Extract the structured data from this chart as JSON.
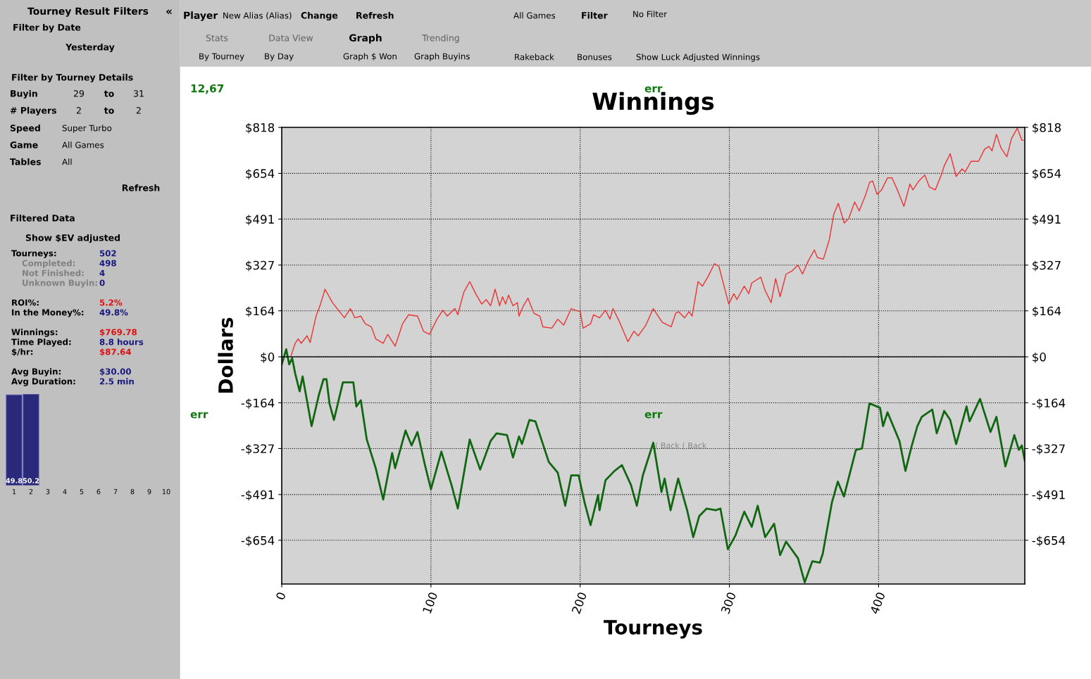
{
  "chart_data": [
    {
      "type": "other",
      "annotations": [
        "Tourney Result Filters",
        "«",
        "Filter by Date",
        "Yesterday",
        "Filter by Tourney Details",
        "Buyin",
        "29",
        "to",
        "31",
        "# Players",
        "2",
        "to",
        "2",
        "Speed",
        "Super Turbo",
        "Game",
        "All Games",
        "Tables",
        "All",
        "Refresh",
        "Filtered Data",
        "Show $EV adjusted",
        "Tourneys:",
        "502",
        "Completed:",
        "498",
        "Not Finished:",
        "4",
        "Unknown Buyin:",
        "0",
        "ROI%:",
        "5.2%",
        "In the Money%:",
        "49.8%",
        "Winnings:",
        "$769.78",
        "Time Played:",
        "8.8 hours",
        "$/hr:",
        "$87.64",
        "Avg Buyin:",
        "$30.00",
        "Avg Duration:",
        "2.5 min",
        "Player",
        "New Alias (Alias)",
        "Change",
        "Refresh",
        "All Games",
        "Filter",
        "No Filter",
        "Stats",
        "Data View",
        "Graph",
        "Trending",
        "By Tourney",
        "By Day",
        "Graph $ Won",
        "Graph Buyins",
        "Rakeback",
        "Bonuses",
        "Show Luck Adjusted Winnings"
      ]
    },
    {
      "type": "bar",
      "categories": [
        "1",
        "2",
        "3",
        "4",
        "5",
        "6",
        "7",
        "8",
        "9",
        "10"
      ],
      "values": [
        49.8,
        50.2,
        null,
        null,
        null,
        null,
        null,
        null,
        null,
        null
      ],
      "color": "#2b2a7a",
      "data_labels": true,
      "tick_labels": "x"
    },
    {
      "type": "line",
      "title": "Winnings",
      "xlabel": "Tourneys",
      "ylabel": "Dollars",
      "grid": true,
      "marker": "none",
      "line_style": "solid",
      "xlim": [
        0,
        498
      ],
      "xticks": [
        0,
        100,
        200,
        300,
        400
      ],
      "ylim": [
        -810,
        818
      ],
      "yticks": [
        {
          "value": 818,
          "label": "$818"
        },
        {
          "value": 654,
          "label": "$654"
        },
        {
          "value": 491,
          "label": "$491"
        },
        {
          "value": 327,
          "label": "$327"
        },
        {
          "value": 164,
          "label": "$164"
        },
        {
          "value": 0,
          "label": "$0"
        },
        {
          "value": -164,
          "label": "-$164"
        },
        {
          "value": -327,
          "label": "-$327"
        },
        {
          "value": -491,
          "label": "-$491"
        },
        {
          "value": -654,
          "label": "-$654"
        }
      ],
      "y2lim": [
        -810,
        818
      ],
      "y2ticks": [
        {
          "value": 818,
          "label": "$818"
        },
        {
          "value": 654,
          "label": "$654"
        },
        {
          "value": 491,
          "label": "$491"
        },
        {
          "value": 327,
          "label": "$327"
        },
        {
          "value": 164,
          "label": "$164"
        },
        {
          "value": 0,
          "label": "$0"
        },
        {
          "value": -164,
          "label": "-$164"
        },
        {
          "value": -327,
          "label": "-$327"
        },
        {
          "value": -491,
          "label": "-$491"
        },
        {
          "value": -654,
          "label": "-$654"
        }
      ],
      "ref_lines": [
        {
          "axis": "y",
          "value": 0,
          "color": "#000000",
          "line_style": "solid"
        }
      ],
      "annotations": [
        "12,67",
        "err",
        "err",
        "err",
        "( Back ( Back"
      ],
      "series": [
        {
          "color": "#ee3333",
          "x": [
            6,
            9,
            11,
            13,
            17,
            19,
            23,
            26,
            29,
            34,
            38,
            42,
            46,
            49,
            53,
            56,
            60,
            63,
            68,
            71,
            76,
            81,
            85,
            91,
            95,
            99,
            104,
            108,
            111,
            116,
            118,
            122,
            126,
            130,
            134,
            137,
            140,
            143,
            146,
            148,
            150,
            152,
            155,
            158,
            159,
            162,
            165,
            169,
            173,
            175,
            181,
            185,
            189,
            194,
            197,
            200,
            202,
            207,
            209,
            213,
            217,
            220,
            222,
            226,
            232,
            236,
            239,
            244,
            249,
            255,
            261,
            264,
            266,
            270,
            273,
            275,
            279,
            282,
            286,
            290,
            293,
            299.6,
            303,
            305,
            310,
            313,
            315,
            321,
            324,
            328,
            331,
            334,
            338,
            342,
            346,
            349,
            353,
            357,
            359,
            363,
            367,
            370,
            373,
            377,
            380,
            384,
            387,
            391,
            394,
            396,
            399,
            402,
            406,
            409,
            413,
            417,
            421,
            423,
            427,
            431,
            434,
            438,
            442,
            444,
            448,
            452,
            456,
            458,
            462,
            467,
            471,
            474,
            476,
            479,
            482,
            486,
            489,
            493,
            496,
            497
          ],
          "values": [
            0,
            48,
            64,
            48,
            75,
            51,
            145,
            188,
            241,
            193,
            166,
            139,
            172,
            139,
            145,
            118,
            107,
            64,
            48,
            80,
            38,
            118,
            150,
            145,
            91,
            80,
            134,
            166,
            145,
            172,
            150,
            230,
            268,
            225,
            188,
            204,
            182,
            241,
            182,
            214,
            188,
            220,
            182,
            193,
            145,
            182,
            209,
            155,
            145,
            107,
            102,
            134,
            113,
            172,
            166,
            161,
            102,
            118,
            150,
            139,
            166,
            134,
            172,
            129,
            54,
            91,
            75,
            113,
            172,
            123,
            107,
            155,
            161,
            139,
            161,
            145,
            268,
            252,
            289,
            332,
            322,
            188,
            225,
            204,
            252,
            225,
            263,
            284,
            236,
            193,
            279,
            214,
            295,
            306,
            327,
            295,
            343,
            381,
            354,
            348,
            418,
            509,
            547,
            477,
            493,
            552,
            520,
            573,
            622,
            627,
            579,
            595,
            638,
            638,
            590,
            536,
            616,
            595,
            627,
            648,
            606,
            595,
            648,
            681,
            724,
            643,
            670,
            659,
            697,
            697,
            740,
            750,
            734,
            793,
            745,
            713,
            777,
            815,
            772,
            772
          ]
        },
        {
          "color": "#116611",
          "x": [
            0,
            3,
            5,
            7,
            9,
            12,
            14,
            20,
            25,
            28,
            30,
            32,
            35,
            41,
            48,
            50,
            53,
            57,
            63,
            68,
            74,
            76,
            83,
            87,
            91,
            96,
            100,
            107,
            114,
            118,
            126,
            133,
            140,
            144,
            151,
            155,
            159,
            161,
            166,
            170,
            179,
            185,
            190,
            194,
            199,
            203,
            207,
            212,
            213,
            217,
            223,
            228,
            234,
            238,
            242,
            249,
            254.5,
            256.6,
            260.6,
            265.7,
            271.7,
            275.8,
            279.8,
            284.8,
            290.9,
            294,
            299,
            304,
            310,
            315,
            319,
            324,
            330,
            334,
            338,
            346,
            350.5,
            355.6,
            360.6,
            362.6,
            368.7,
            372.7,
            376.8,
            384.8,
            388.9,
            393.9,
            401,
            403,
            406,
            414,
            418,
            422,
            426,
            429,
            436,
            439,
            444,
            448,
            452,
            459,
            461,
            468,
            475,
            479,
            485,
            491,
            494,
            496,
            498
          ],
          "values": [
            -27,
            27,
            -27,
            -5,
            -59,
            -123,
            -70,
            -247,
            -134,
            -80,
            -80,
            -166,
            -225,
            -91,
            -91,
            -177,
            -155,
            -295,
            -397,
            -509,
            -343,
            -397,
            -263,
            -316,
            -268,
            -386,
            -472,
            -338,
            -461,
            -541,
            -295,
            -402,
            -300,
            -273,
            -279,
            -359,
            -284,
            -311,
            -225,
            -230,
            -375,
            -413,
            -531,
            -423,
            -423,
            -520,
            -600,
            -493,
            -547,
            -440,
            -407,
            -386,
            -456,
            -531,
            -423,
            -306,
            -482,
            -434,
            -547,
            -434,
            -547,
            -643,
            -568,
            -541,
            -547,
            -541,
            -686,
            -638,
            -552,
            -606,
            -531,
            -643,
            -595,
            -707,
            -659,
            -718,
            -804,
            -729,
            -734,
            -702,
            -520,
            -445,
            -498,
            -332,
            -327,
            -166,
            -182,
            -247,
            -198,
            -300,
            -407,
            -322,
            -247,
            -214,
            -188,
            -273,
            -193,
            -225,
            -311,
            -177,
            -230,
            -150,
            -268,
            -214,
            -391,
            -279,
            -332,
            -316,
            -370
          ]
        }
      ]
    }
  ]
}
